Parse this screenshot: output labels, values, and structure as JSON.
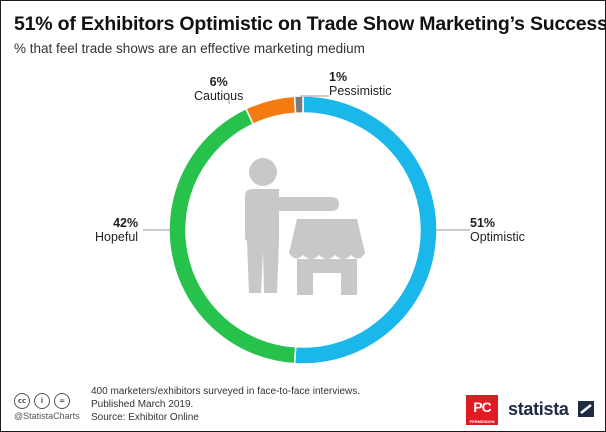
{
  "title": "51% of Exhibitors Optimistic on Trade Show Marketing’s Success",
  "subtitle": "% that feel trade shows are an effective marketing medium",
  "chart_data": {
    "type": "pie",
    "donut": true,
    "title": "51% of Exhibitors Optimistic on Trade Show Marketing’s Success",
    "subtitle": "% that feel trade shows are an effective marketing medium",
    "slices": [
      {
        "label": "Optimistic",
        "value": 51,
        "display": "51%",
        "color": "#1ab7ea"
      },
      {
        "label": "Hopeful",
        "value": 42,
        "display": "42%",
        "color": "#27c24c"
      },
      {
        "label": "Cautious",
        "value": 6,
        "display": "6%",
        "color": "#f47b10"
      },
      {
        "label": "Pessimistic",
        "value": 1,
        "display": "1%",
        "color": "#7a7a7a"
      }
    ]
  },
  "footer": {
    "note_line1": "400 marketers/exhibitors surveyed in face-to-face interviews.",
    "note_line2": "Published March 2019.",
    "source": "Source: Exhibitor Online",
    "handle": "@StatistaCharts",
    "cc_icons": [
      "cc",
      "i",
      "="
    ],
    "pc_logo_text": "PC",
    "pc_logo_sub": "PERMISSION",
    "brand": "statista"
  }
}
